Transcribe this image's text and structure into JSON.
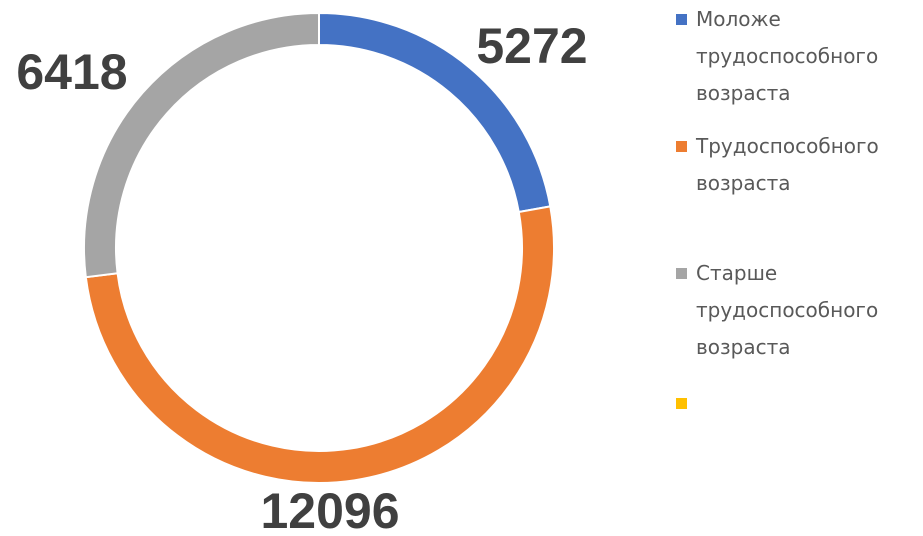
{
  "chart_data": {
    "type": "donut",
    "categories": [
      "Моложе трудоспособного возраста",
      "Трудоспособного возраста",
      "Старше трудоспособного возраста",
      null
    ],
    "values": [
      5272,
      12096,
      6418,
      null
    ],
    "colors": [
      "#4472c4",
      "#ed7d31",
      "#a5a5a5",
      "#ffc000"
    ],
    "legend": "right"
  }
}
